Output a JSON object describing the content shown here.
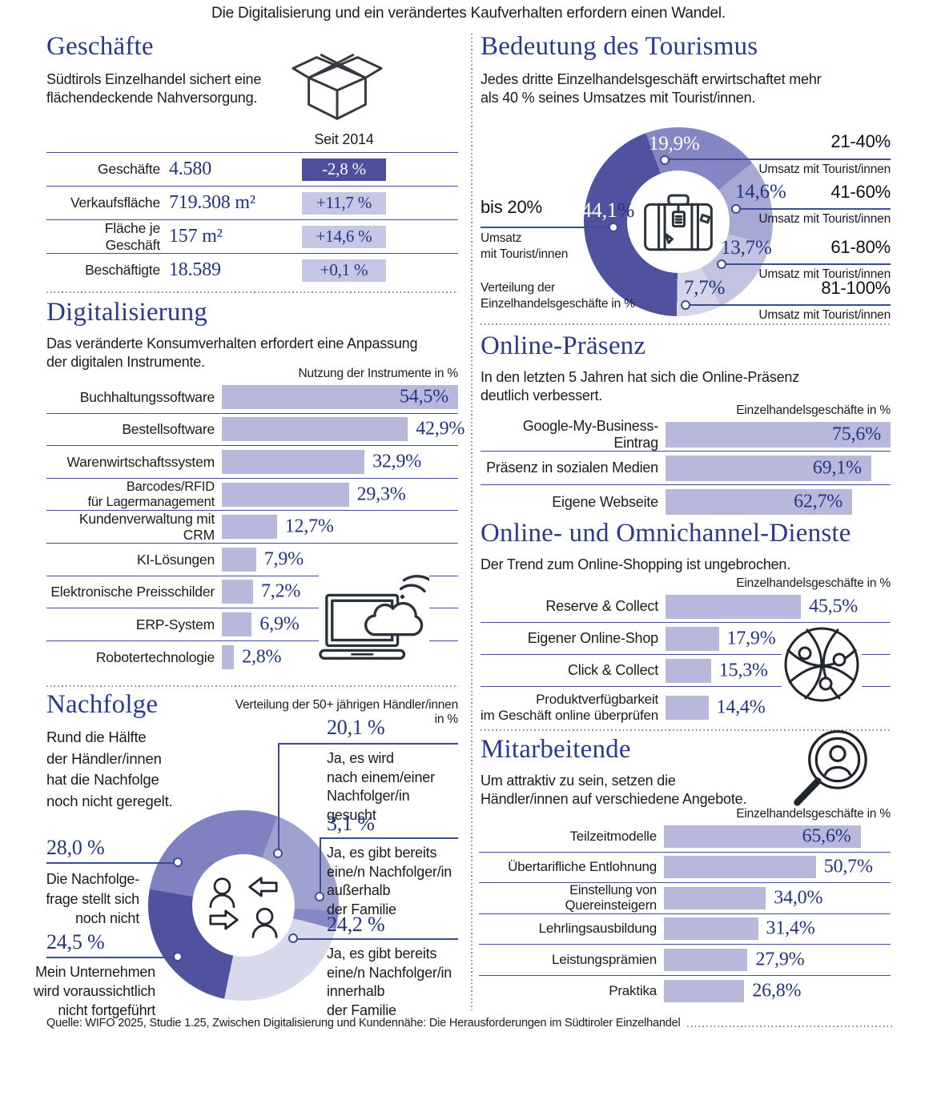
{
  "header": {
    "title": "Die Digitalisierung und ein verändertes Kaufverhalten erfordern einen Wandel."
  },
  "footer": {
    "source": "Quelle: WIFO 2025, Studie 1.25, Zwischen Digitalisierung und Kundennähe: Die Herausforderungen im Südtiroler Einzelhandel"
  },
  "colors": {
    "accent_dark": "#4b4f9c",
    "accent": "#8487c4",
    "accent_mid": "#9fa1cf",
    "bar": "#b7b8dc",
    "accent_light": "#c6c7e4",
    "accent_pale": "#d9d9ec",
    "navy_title": "#2b3a8a",
    "navy_number": "#22357d",
    "line_blue": "#3d4c96"
  },
  "chart_data": [
    {
      "id": "geschaefte",
      "type": "table",
      "title": "Geschäfte",
      "subtitle": "Südtirols Einzelhandel sichert eine\nflächendeckende Nahversorgung.",
      "column_header": "Seit 2014",
      "icon": "open-box-icon",
      "rows": [
        {
          "label": "Geschäfte",
          "value": "4.580",
          "change": "-2,8 %",
          "highlight": true
        },
        {
          "label": "Verkaufsfläche",
          "value": "719.308 m²",
          "change": "+11,7 %",
          "highlight": false
        },
        {
          "label": "Fläche je Geschäft",
          "value": "157 m²",
          "change": "+14,6 %",
          "highlight": false
        },
        {
          "label": "Beschäftigte",
          "value": "18.589",
          "change": "+0,1 %",
          "highlight": false
        }
      ]
    },
    {
      "id": "tourismus",
      "type": "pie",
      "title": "Bedeutung des Tourismus",
      "subtitle": "Jedes dritte Einzelhandelsgeschäft erwirtschaftet mehr\nals 40 % seines Umsatzes mit Tourist/innen.",
      "note": "Verteilung der\nEinzelhandelsgeschäfte in %",
      "icon": "suitcase-icon",
      "start_angle": 181,
      "slices": [
        {
          "label": "bis 20%",
          "sub": "Umsatz\nmit Tourist/innen",
          "value": 44.1,
          "value_label": "44,1",
          "unit": "%",
          "color": "#4e529f"
        },
        {
          "label": "21-40%",
          "sub": "Umsatz mit Tourist/innen",
          "value": 19.9,
          "value_label": "19,9%",
          "color": "#8487c4"
        },
        {
          "label": "41-60%",
          "sub": "Umsatz mit Tourist/innen",
          "value": 14.6,
          "value_label": "14,6%",
          "color": "#a7a9d5"
        },
        {
          "label": "61-80%",
          "sub": "Umsatz mit Tourist/innen",
          "value": 13.7,
          "value_label": "13,7%",
          "color": "#c2c3e1"
        },
        {
          "label": "81-100%",
          "sub": "Umsatz mit Tourist/innen",
          "value": 7.7,
          "value_label": "7,7%",
          "color": "#d5d6ea"
        }
      ]
    },
    {
      "id": "digitalisierung",
      "type": "bar",
      "title": "Digitalisierung",
      "subtitle": "Das veränderte Konsumverhalten erfordert eine Anpassung\nder digitalen Instrumente.",
      "axis_note": "Nutzung der Instrumente in %",
      "icon": "laptop-cloud-icon",
      "scale_max": 54.5,
      "rows": [
        {
          "label": "Buchhaltungssoftware",
          "value": 54.5,
          "value_label": "54,5%"
        },
        {
          "label": "Bestellsoftware",
          "value": 42.9,
          "value_label": "42,9%"
        },
        {
          "label": "Warenwirtschaftssystem",
          "value": 32.9,
          "value_label": "32,9%"
        },
        {
          "label": "Barcodes/RFID\nfür Lagermanagement",
          "value": 29.3,
          "value_label": "29,3%"
        },
        {
          "label": "Kundenverwaltung mit CRM",
          "value": 12.7,
          "value_label": "12,7%"
        },
        {
          "label": "KI-Lösungen",
          "value": 7.9,
          "value_label": "7,9%"
        },
        {
          "label": "Elektronische Preisschilder",
          "value": 7.2,
          "value_label": "7,2%"
        },
        {
          "label": "ERP-System",
          "value": 6.9,
          "value_label": "6,9%"
        },
        {
          "label": "Robotertechnologie",
          "value": 2.8,
          "value_label": "2,8%"
        }
      ]
    },
    {
      "id": "online-praesenz",
      "type": "bar",
      "title": "Online-Präsenz",
      "subtitle": "In den letzten 5 Jahren hat sich die Online-Präsenz\ndeutlich verbessert.",
      "axis_note": "Einzelhandelsgeschäfte in %",
      "scale_max": 75.6,
      "rows": [
        {
          "label": "Google-My-Business-Eintrag",
          "value": 75.6,
          "value_label": "75,6%"
        },
        {
          "label": "Präsenz in sozialen Medien",
          "value": 69.1,
          "value_label": "69,1%"
        },
        {
          "label": "Eigene Webseite",
          "value": 62.7,
          "value_label": "62,7%"
        }
      ]
    },
    {
      "id": "omnichannel",
      "type": "bar",
      "title": "Online- und Omnichannel-Dienste",
      "subtitle": "Der Trend zum Online-Shopping ist ungebrochen.",
      "axis_note": "Einzelhandelsgeschäfte in %",
      "icon": "globe-network-icon",
      "scale_max": 75.6,
      "rows": [
        {
          "label": "Reserve & Collect",
          "value": 45.5,
          "value_label": "45,5%"
        },
        {
          "label": "Eigener Online-Shop",
          "value": 17.9,
          "value_label": "17,9%"
        },
        {
          "label": "Click & Collect",
          "value": 15.3,
          "value_label": "15,3%"
        },
        {
          "label": "Produktverfügbarkeit\nim Geschäft online überprüfen",
          "value": 14.4,
          "value_label": "14,4%"
        }
      ]
    },
    {
      "id": "nachfolge",
      "type": "pie",
      "title": "Nachfolge",
      "subtitle": "Rund die Hälfte\nder Händler/innen\nhat die Nachfolge\nnoch nicht geregelt.",
      "axis_note": "Verteilung der 50+ jährigen Händler/innen in %",
      "icon": "succession-icon",
      "start_angle": 21,
      "slices": [
        {
          "value": 20.1,
          "value_label": "20,1 %",
          "desc": "Ja, es wird\nnach einem/einer\nNachfolger/in\ngesucht",
          "color": "#9fa1cf"
        },
        {
          "value": 3.1,
          "value_label": "3,1 %",
          "desc": "Ja, es gibt bereits\neine/n Nachfolger/in\naußerhalb\nder Familie",
          "color": "#8688c5"
        },
        {
          "value": 24.2,
          "value_label": "24,2 %",
          "desc": "Ja, es gibt bereits\neine/n Nachfolger/in\ninnerhalb\nder Familie",
          "color": "#d9d9ec"
        },
        {
          "value": 24.5,
          "value_label": "24,5 %",
          "desc": "Mein Unternehmen\nwird voraussichtlich\nnicht fortgeführt",
          "color": "#4e529f"
        },
        {
          "value": 28.0,
          "value_label": "28,0 %",
          "desc": "Die Nachfolge-\nfrage stellt sich\nnoch nicht",
          "color": "#7f81c0"
        }
      ]
    },
    {
      "id": "mitarbeitende",
      "type": "bar",
      "title": "Mitarbeitende",
      "subtitle": "Um attraktiv zu sein, setzen die\nHändler/innen auf verschiedene Angebote.",
      "axis_note": "Einzelhandelsgeschäfte in %",
      "icon": "magnifier-person-icon",
      "scale_max": 75.6,
      "rows": [
        {
          "label": "Teilzeitmodelle",
          "value": 65.6,
          "value_label": "65,6%"
        },
        {
          "label": "Übertarifliche Entlohnung",
          "value": 50.7,
          "value_label": "50,7%"
        },
        {
          "label": "Einstellung von Quereinsteigern",
          "value": 34.0,
          "value_label": "34,0%"
        },
        {
          "label": "Lehrlingsausbildung",
          "value": 31.4,
          "value_label": "31,4%"
        },
        {
          "label": "Leistungsprämien",
          "value": 27.9,
          "value_label": "27,9%"
        },
        {
          "label": "Praktika",
          "value": 26.8,
          "value_label": "26,8%"
        }
      ]
    }
  ]
}
